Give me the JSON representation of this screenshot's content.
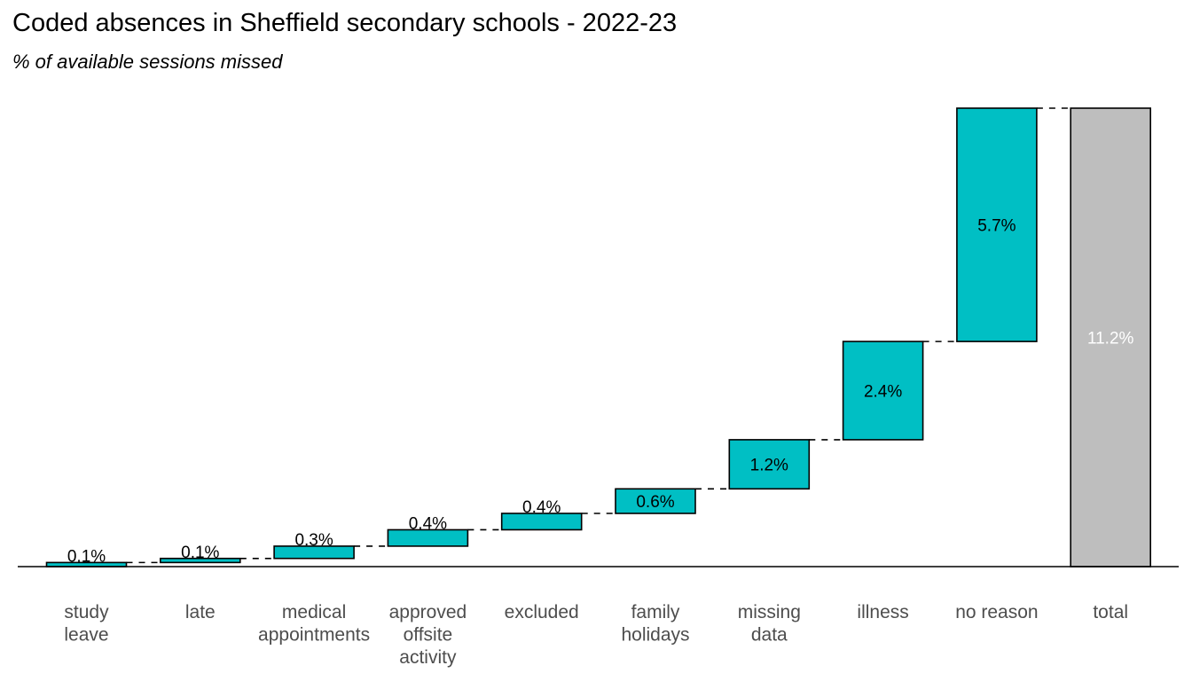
{
  "title": "Coded absences in Sheffield secondary schools - 2022-23",
  "subtitle": "% of available sessions missed",
  "colors": {
    "increment": "#00BFC4",
    "total": "#BEBEBE",
    "outline": "#000000",
    "axis_text": "#4D4D4D",
    "total_label": "#FFFFFF"
  },
  "chart_data": {
    "type": "bar",
    "subtype": "waterfall",
    "title": "Coded absences in Sheffield secondary schools - 2022-23",
    "subtitle": "% of available sessions missed",
    "xlabel": "",
    "ylabel": "",
    "ylim": [
      0,
      11.2
    ],
    "grid": false,
    "legend": "none",
    "categories": [
      [
        "study",
        "leave"
      ],
      [
        "late"
      ],
      [
        "medical",
        "appointments"
      ],
      [
        "approved",
        "offsite",
        "activity"
      ],
      [
        "excluded"
      ],
      [
        "family",
        "holidays"
      ],
      [
        "missing",
        "data"
      ],
      [
        "illness"
      ],
      [
        "no reason"
      ],
      [
        "total"
      ]
    ],
    "values": [
      0.1,
      0.1,
      0.3,
      0.4,
      0.4,
      0.6,
      1.2,
      2.4,
      5.7,
      11.2
    ],
    "labels": [
      "0.1%",
      "0.1%",
      "0.3%",
      "0.4%",
      "0.4%",
      "0.6%",
      "1.2%",
      "2.4%",
      "5.7%",
      "11.2%"
    ],
    "is_total": [
      false,
      false,
      false,
      false,
      false,
      false,
      false,
      false,
      false,
      true
    ]
  }
}
